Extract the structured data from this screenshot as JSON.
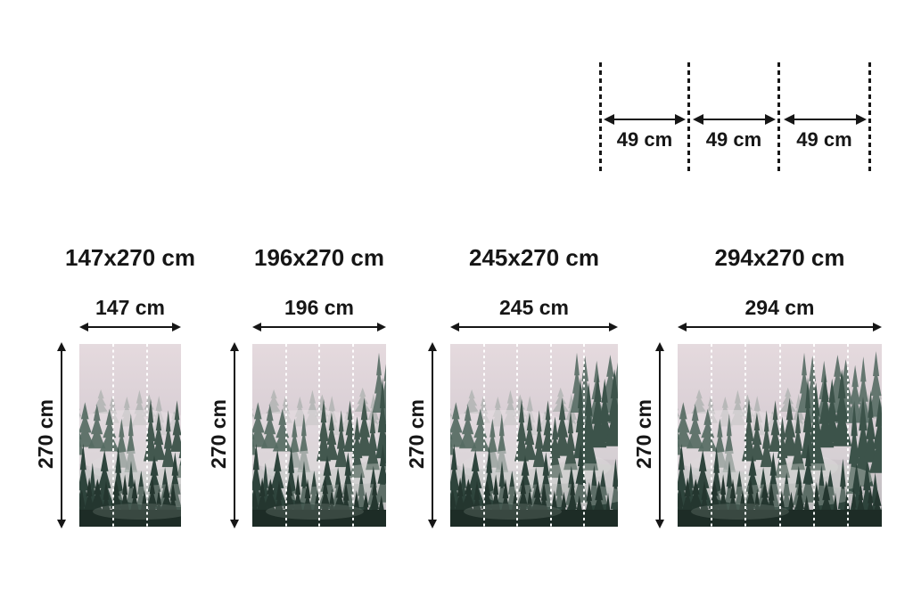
{
  "panel_diagram": {
    "labels": [
      "49 cm",
      "49 cm",
      "49 cm"
    ]
  },
  "products": [
    {
      "title": "147x270 cm",
      "width_label": "147 cm",
      "height_label": "270 cm",
      "panels": 3
    },
    {
      "title": "196x270 cm",
      "width_label": "196 cm",
      "height_label": "270 cm",
      "panels": 4
    },
    {
      "title": "245x270 cm",
      "width_label": "245 cm",
      "height_label": "270 cm",
      "panels": 5
    },
    {
      "title": "294x270 cm",
      "width_label": "294 cm",
      "height_label": "270 cm",
      "panels": 6
    }
  ],
  "colors": {
    "text": "#161616",
    "arrow": "#161616",
    "panel_divider": "#ffffff",
    "fog_top": "#ddd2d8",
    "tree_mid": "#43584f",
    "tree_dark": "#1d2c26"
  }
}
